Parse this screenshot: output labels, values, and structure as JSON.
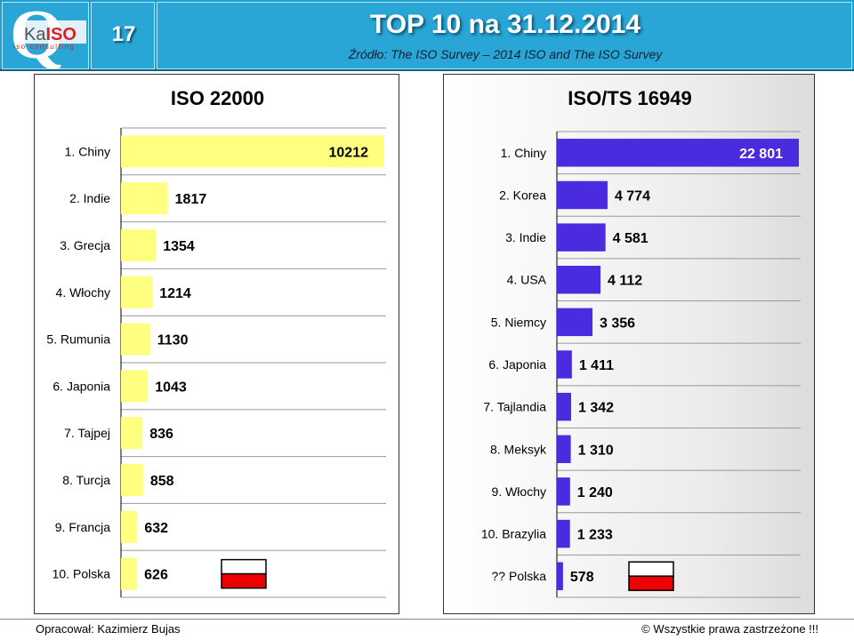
{
  "header": {
    "slide_number": "17",
    "title": "TOP 10 na 31.12.2014",
    "subtitle": "Źródło: The ISO Survey – 2014   ISO and The ISO Survey",
    "logo": {
      "letter": "Q",
      "brand_ka": "Ka",
      "brand_iso": "ISO",
      "tagline": "iso consulting"
    }
  },
  "footer": {
    "author": "Opracował: Kazimierz Bujas",
    "rights": "© Wszystkie prawa zastrzeżone !!!"
  },
  "colors": {
    "header_bg": "#29a6d6",
    "bar_left": "#ffff80",
    "bar_right": "#4a2be0",
    "flag_white": "#ffffff",
    "flag_red": "#ee0000"
  },
  "chart_data": [
    {
      "type": "bar",
      "orientation": "horizontal",
      "title": "ISO 22000",
      "categories": [
        "1. Chiny",
        "2. Indie",
        "3. Grecja",
        "4. Włochy",
        "5. Rumunia",
        "6. Japonia",
        "7. Tajpej",
        "8. Turcja",
        "9. Francja",
        "10. Polska"
      ],
      "values": [
        10212,
        1817,
        1354,
        1214,
        1130,
        1043,
        836,
        858,
        632,
        626
      ],
      "value_labels": [
        "10212",
        "1817",
        "1354",
        "1214",
        "1130",
        "1043",
        "836",
        "858",
        "632",
        "626"
      ],
      "xlim": [
        0,
        10212
      ],
      "grid": "horizontal",
      "flag_row": 9
    },
    {
      "type": "bar",
      "orientation": "horizontal",
      "title": "ISO/TS 16949",
      "categories": [
        "1. Chiny",
        "2. Korea",
        "3. Indie",
        "4. USA",
        "5. Niemcy",
        "6. Japonia",
        "7. Tajlandia",
        "8. Meksyk",
        "9. Włochy",
        "10. Brazylia",
        "?? Polska"
      ],
      "values": [
        22801,
        4774,
        4581,
        4112,
        3356,
        1411,
        1342,
        1310,
        1240,
        1233,
        578
      ],
      "value_labels": [
        "22 801",
        "4 774",
        "4 581",
        "4 112",
        "3 356",
        "1 411",
        "1 342",
        "1 310",
        "1 240",
        "1 233",
        "578"
      ],
      "xlim": [
        0,
        22801
      ],
      "grid": "horizontal",
      "flag_row": 10
    }
  ]
}
